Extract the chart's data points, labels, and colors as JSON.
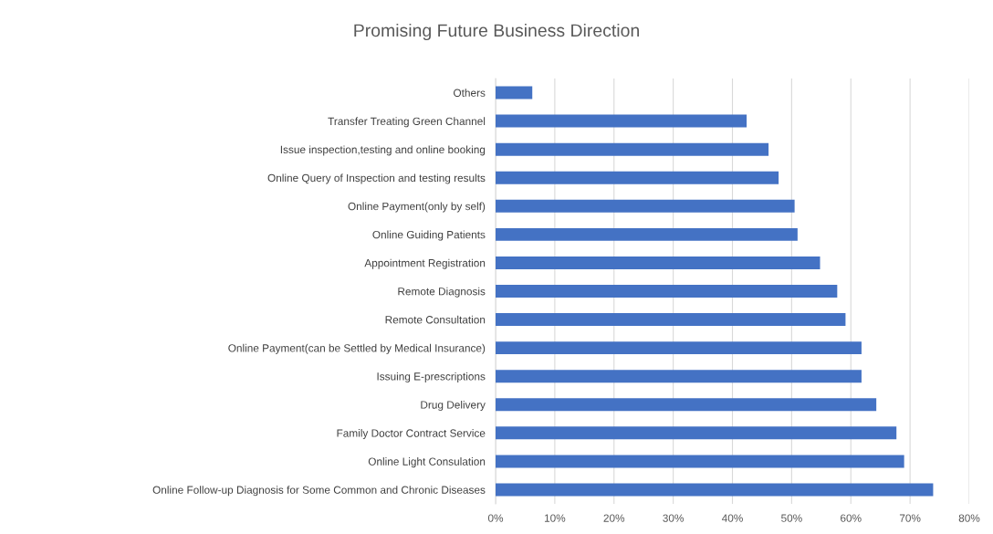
{
  "chart_data": {
    "type": "bar",
    "orientation": "horizontal",
    "title": "Promising Future Business Direction",
    "categories": [
      "Others",
      "Transfer Treating Green Channel",
      "Issue inspection,testing and online booking",
      "Online Query of Inspection and testing results",
      "Online Payment(only by self)",
      "Online Guiding Patients",
      "Appointment Registration",
      "Remote Diagnosis",
      "Remote Consultation",
      "Online Payment(can be Settled by Medical Insurance)",
      "Issuing E-prescriptions",
      "Drug Delivery",
      "Family Doctor Contract Service",
      "Online Light Consulation",
      "Online Follow-up Diagnosis for Some Common and Chronic Diseases"
    ],
    "values": [
      6.2,
      42.4,
      46.1,
      47.8,
      50.5,
      51.0,
      54.8,
      57.7,
      59.1,
      61.8,
      61.8,
      64.3,
      67.7,
      69.0,
      73.9
    ],
    "color": "#4472c4",
    "xlim": [
      0,
      80
    ],
    "xticks": [
      {
        "value": 0,
        "label": "0%"
      },
      {
        "value": 10,
        "label": "10%"
      },
      {
        "value": 20,
        "label": "20%"
      },
      {
        "value": 30,
        "label": "30%"
      },
      {
        "value": 40,
        "label": "40%"
      },
      {
        "value": 50,
        "label": "50%"
      },
      {
        "value": 60,
        "label": "60%"
      },
      {
        "value": 70,
        "label": "70%"
      },
      {
        "value": 80,
        "label": "80%"
      }
    ],
    "grid": "x",
    "legend": false
  }
}
